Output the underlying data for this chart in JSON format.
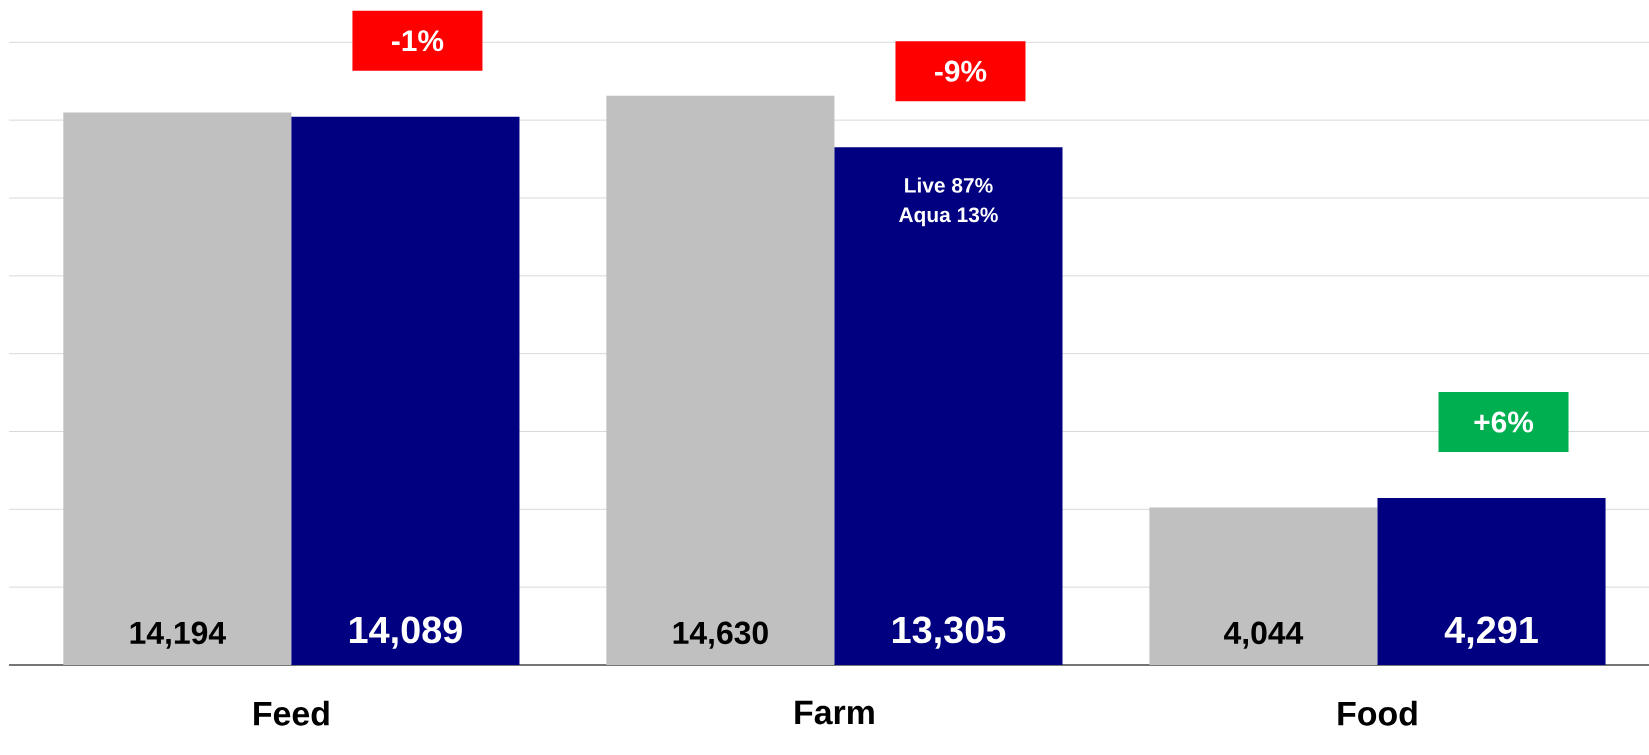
{
  "chart_data": {
    "type": "bar",
    "categories": [
      "Feed",
      "Farm",
      "Food"
    ],
    "series": [
      {
        "color": "#c0c0c0",
        "values": [
          14194,
          14630,
          4044
        ],
        "value_labels": [
          "14,194",
          "14,630",
          "4,044"
        ]
      },
      {
        "color": "#000080",
        "values": [
          14089,
          13305,
          4291
        ],
        "value_labels": [
          "14,089",
          "13,305",
          "4,291"
        ]
      }
    ],
    "tick_labels": "x",
    "grid": "y",
    "annotations": [
      "-1%",
      "-9%",
      "+6%",
      "Live 87%",
      "Aqua 13%"
    ]
  }
}
